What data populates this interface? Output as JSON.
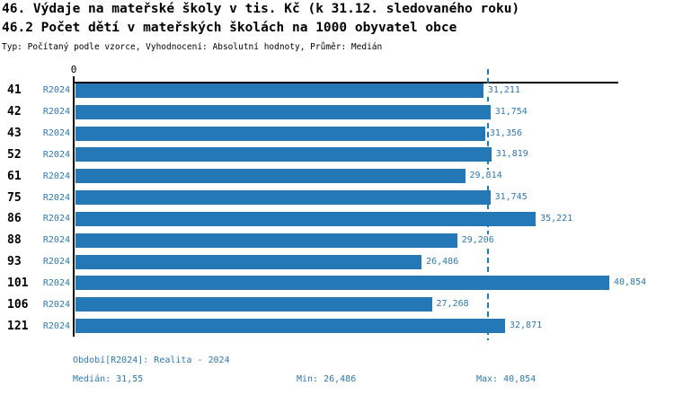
{
  "chart_data": {
    "type": "bar",
    "orientation": "horizontal",
    "title": "46. Výdaje na mateřské školy v tis. Kč (k 31.12. sledovaného roku)",
    "subtitle": "46.2 Počet dětí v mateřských školách na 1000 obyvatel obce",
    "meta_line": "Typ: Počítaný podle vzorce, Vyhodnocení: Absolutní hodnoty, Průměr: Medián",
    "categories": [
      "41",
      "42",
      "43",
      "52",
      "61",
      "75",
      "86",
      "88",
      "93",
      "101",
      "106",
      "121"
    ],
    "series": [
      {
        "name": "R2024",
        "values": [
          31211,
          31754,
          31356,
          31819,
          29814,
          31745,
          35221,
          29206,
          26486,
          40854,
          27268,
          32871
        ]
      }
    ],
    "value_labels": [
      "31,211",
      "31,754",
      "31,356",
      "31,819",
      "29,814",
      "31,745",
      "35,221",
      "29,206",
      "26,486",
      "40,854",
      "27,268",
      "32,871"
    ],
    "xlabel": "",
    "ylabel": "",
    "xlim": [
      0,
      41540
    ],
    "axis_zero_label": "0",
    "median_value": 31550,
    "grid": false,
    "legend": false
  },
  "footer": {
    "period_line": "Období[R2024]: Realita - 2024",
    "median_label": "Medián: 31,55",
    "min_label": "Min: 26,486",
    "max_label": "Max: 40,854"
  },
  "colors": {
    "bar": "#2478b5",
    "label_blue": "#2e78b0",
    "axis": "#000000"
  }
}
